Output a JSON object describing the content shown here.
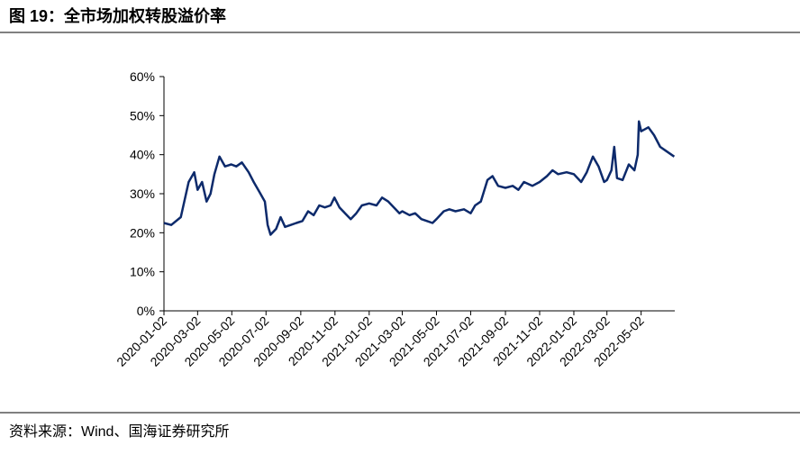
{
  "chart_data": {
    "type": "line",
    "title": "图 19：全市场加权转股溢价率",
    "source": "资料来源：Wind、国海证券研究所",
    "x": [
      "2020-01-02",
      "2020-01-15",
      "2020-02-01",
      "2020-02-15",
      "2020-02-25",
      "2020-03-02",
      "2020-03-10",
      "2020-03-18",
      "2020-03-25",
      "2020-04-01",
      "2020-04-10",
      "2020-04-20",
      "2020-05-01",
      "2020-05-10",
      "2020-05-20",
      "2020-06-01",
      "2020-06-10",
      "2020-06-20",
      "2020-06-30",
      "2020-07-05",
      "2020-07-10",
      "2020-07-20",
      "2020-07-28",
      "2020-08-05",
      "2020-08-15",
      "2020-08-25",
      "2020-09-05",
      "2020-09-15",
      "2020-09-25",
      "2020-10-05",
      "2020-10-15",
      "2020-10-25",
      "2020-11-01",
      "2020-11-10",
      "2020-11-20",
      "2020-11-30",
      "2020-12-10",
      "2020-12-20",
      "2021-01-02",
      "2021-01-15",
      "2021-01-25",
      "2021-02-05",
      "2021-02-15",
      "2021-02-25",
      "2021-03-02",
      "2021-03-15",
      "2021-03-25",
      "2021-04-05",
      "2021-04-15",
      "2021-04-25",
      "2021-05-02",
      "2021-05-15",
      "2021-05-25",
      "2021-06-05",
      "2021-06-20",
      "2021-07-02",
      "2021-07-10",
      "2021-07-20",
      "2021-08-01",
      "2021-08-10",
      "2021-08-20",
      "2021-09-02",
      "2021-09-15",
      "2021-09-25",
      "2021-10-05",
      "2021-10-20",
      "2021-11-02",
      "2021-11-15",
      "2021-11-25",
      "2021-12-05",
      "2021-12-20",
      "2022-01-02",
      "2022-01-15",
      "2022-01-25",
      "2022-02-05",
      "2022-02-15",
      "2022-02-25",
      "2022-03-02",
      "2022-03-10",
      "2022-03-15",
      "2022-03-20",
      "2022-03-30",
      "2022-04-10",
      "2022-04-20",
      "2022-04-26",
      "2022-04-28",
      "2022-05-02",
      "2022-05-15",
      "2022-05-25",
      "2022-06-05",
      "2022-06-15",
      "2022-06-25",
      "2022-06-30"
    ],
    "series": [
      {
        "name": "全市场加权转股溢价率",
        "color": "#0d2a6b",
        "values": [
          22.5,
          22,
          24,
          33,
          35.5,
          31,
          33,
          28,
          30,
          35,
          39.5,
          37,
          37.5,
          37,
          38,
          35.5,
          33,
          30.5,
          28,
          22,
          19.5,
          21,
          24,
          21.5,
          22,
          22.5,
          23,
          25.5,
          24.5,
          27,
          26.5,
          27,
          29,
          26.5,
          25,
          23.5,
          25,
          27,
          27.5,
          27,
          29,
          28,
          26.5,
          25,
          25.5,
          24.5,
          25,
          23.5,
          23,
          22.5,
          23.5,
          25.5,
          26,
          25.5,
          26,
          25,
          27,
          28,
          33.5,
          34.5,
          32,
          31.5,
          32,
          31,
          33,
          32,
          33,
          34.5,
          36,
          35,
          35.5,
          35,
          33,
          35.5,
          39.5,
          37,
          33,
          33.5,
          36,
          42,
          34,
          33.5,
          37.5,
          36,
          40,
          48.5,
          46,
          47,
          45,
          42,
          41,
          40,
          39.5
        ]
      }
    ],
    "xlim": [
      "2020-01-02",
      "2022-07-01"
    ],
    "xticks": [
      "2020-01-02",
      "2020-03-02",
      "2020-05-02",
      "2020-07-02",
      "2020-09-02",
      "2020-11-02",
      "2021-01-02",
      "2021-03-02",
      "2021-05-02",
      "2021-07-02",
      "2021-09-02",
      "2021-11-02",
      "2022-01-02",
      "2022-03-02",
      "2022-05-02"
    ],
    "ylim": [
      0,
      60
    ],
    "yticks": [
      {
        "value": 0,
        "label": "0%"
      },
      {
        "value": 10,
        "label": "10%"
      },
      {
        "value": 20,
        "label": "20%"
      },
      {
        "value": 30,
        "label": "30%"
      },
      {
        "value": 40,
        "label": "40%"
      },
      {
        "value": 50,
        "label": "50%"
      },
      {
        "value": 60,
        "label": "60%"
      }
    ]
  }
}
